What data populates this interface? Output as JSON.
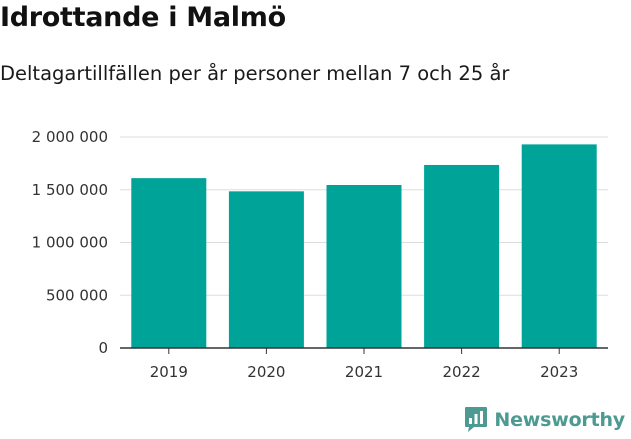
{
  "header": {
    "title": "Idrottande i Malmö",
    "subtitle": "Deltagartillfällen per år personer mellan 7 och 25 år"
  },
  "brand": {
    "name": "Newsworthy",
    "logo_icon": "newsworthy-logo-icon"
  },
  "colors": {
    "bar": "#00a398",
    "grid": "#dddddd",
    "axis": "#333333",
    "brand": "#4c9a91"
  },
  "chart_data": {
    "type": "bar",
    "categories": [
      "2019",
      "2020",
      "2021",
      "2022",
      "2023"
    ],
    "values": [
      1610000,
      1485000,
      1545000,
      1735000,
      1930000
    ],
    "ylim": [
      0,
      2000000
    ],
    "yticks": [
      0,
      500000,
      1000000,
      1500000,
      2000000
    ],
    "ytick_labels": [
      "0",
      "500 000",
      "1 000 000",
      "1 500 000",
      "2 000 000"
    ],
    "grid": true,
    "xlabel": "",
    "ylabel": ""
  }
}
